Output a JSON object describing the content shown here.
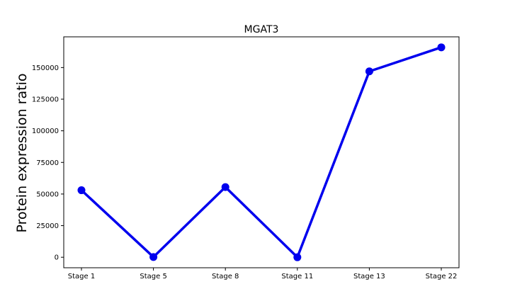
{
  "chart_data": {
    "type": "line",
    "title": "MGAT3",
    "xlabel": "",
    "ylabel": "Protein expression ratio",
    "categories": [
      "Stage 1",
      "Stage 5",
      "Stage 8",
      "Stage 11",
      "Stage 13",
      "Stage 22"
    ],
    "series": [
      {
        "values": [
          53000,
          200,
          55500,
          0,
          147000,
          166000
        ],
        "color": "#0000ee",
        "marker": "circle"
      }
    ],
    "yticks": [
      0,
      25000,
      50000,
      75000,
      100000,
      125000,
      150000
    ],
    "ytick_labels": [
      "0",
      "25000",
      "50000",
      "75000",
      "100000",
      "125000",
      "150000"
    ],
    "ylim": [
      -8300,
      174300
    ],
    "grid": false,
    "legend": "none"
  }
}
